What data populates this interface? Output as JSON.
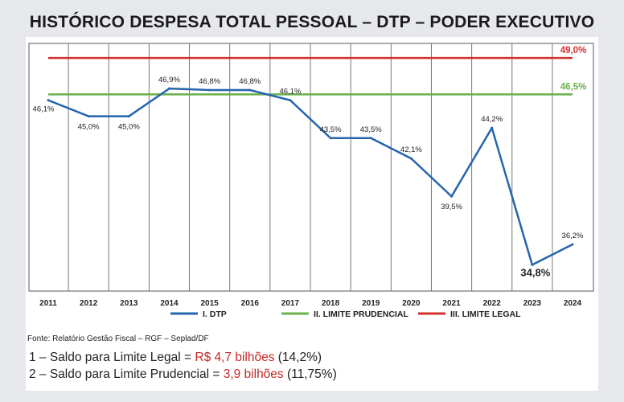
{
  "title": "HISTÓRICO DESPESA TOTAL PESSOAL – DTP – PODER EXECUTIVO",
  "chart_data": {
    "type": "line",
    "categories": [
      "2011",
      "2012",
      "2013",
      "2014",
      "2015",
      "2016",
      "2017",
      "2018",
      "2019",
      "2020",
      "2021",
      "2022",
      "2023",
      "2024"
    ],
    "ylim": [
      33,
      50
    ],
    "grid": "vertical",
    "legend_position": "bottom",
    "series": [
      {
        "name": "I. DTP",
        "color": "#2565ae",
        "values": [
          46.1,
          45.0,
          45.0,
          46.9,
          46.8,
          46.8,
          46.1,
          43.5,
          43.5,
          42.1,
          39.5,
          44.2,
          34.8,
          36.2
        ],
        "labels": [
          "46,1%",
          "45,0%",
          "45,0%",
          "46,9%",
          "46,8%",
          "46,8%",
          "46,1%",
          "43,5%",
          "43,5%",
          "42,1%",
          "39,5%",
          "44,2%",
          "34,8%",
          "36,2%"
        ]
      },
      {
        "name": "II. LIMITE PRUDENCIAL",
        "color": "#6ab04c",
        "values": [
          46.5,
          46.5,
          46.5,
          46.5,
          46.5,
          46.5,
          46.5,
          46.5,
          46.5,
          46.5,
          46.5,
          46.5,
          46.5,
          46.5
        ],
        "end_label": "46,5%"
      },
      {
        "name": "III. LIMITE LEGAL",
        "color": "#d32f2f",
        "values": [
          49.0,
          49.0,
          49.0,
          49.0,
          49.0,
          49.0,
          49.0,
          49.0,
          49.0,
          49.0,
          49.0,
          49.0,
          49.0,
          49.0
        ],
        "end_label": "49,0%"
      }
    ]
  },
  "source": "Fonte: Relatório Gestão Fiscal – RGF – Seplad/DF",
  "notes": {
    "line1_prefix": "1 – Saldo para Limite Legal = ",
    "line1_value": "R$ 4,7 bilhões",
    "line1_suffix": " (14,2%)",
    "line2_prefix": "2 – Saldo para Limite Prudencial = ",
    "line2_value": "3,9 bilhões",
    "line2_suffix": " (11,75%)"
  }
}
